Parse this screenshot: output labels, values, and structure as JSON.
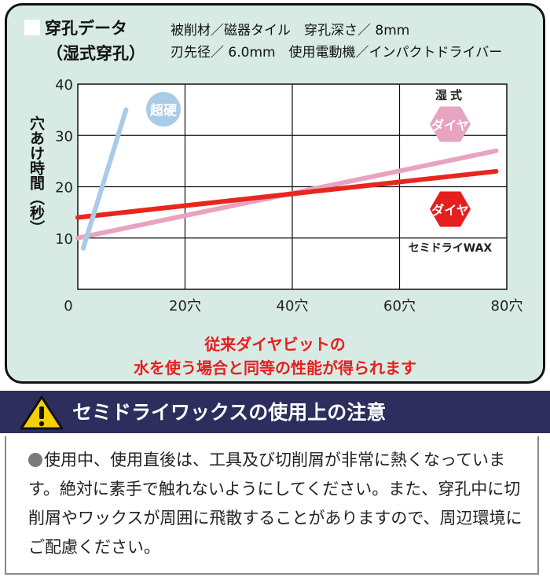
{
  "header": {
    "title_line1": "穿孔データ",
    "title_line2": "（湿式穿孔）",
    "condition_line1": "被削材／磁器タイル　穿孔深さ／ 8mm",
    "condition_line2": "刃先径／ 6.0mm　使用電動機／インパクトドライバー"
  },
  "chart_data": {
    "type": "line",
    "ylabel": "穴あけ時間（秒）",
    "x_ticks": [
      "0",
      "20穴",
      "40穴",
      "60穴",
      "80穴"
    ],
    "y_ticks": [
      "10",
      "20",
      "30",
      "40"
    ],
    "xlim": [
      0,
      80
    ],
    "ylim": [
      0,
      40
    ],
    "grid": true,
    "series": [
      {
        "name": "超硬",
        "color": "#a9cbe8",
        "x": [
          1,
          9
        ],
        "y": [
          8,
          35
        ]
      },
      {
        "name": "湿式ダイヤ",
        "color": "#e8a3c1",
        "x": [
          0,
          78
        ],
        "y": [
          10,
          27
        ]
      },
      {
        "name": "セミドライWAX",
        "color": "#e8261e",
        "x": [
          0,
          78
        ],
        "y": [
          14,
          23
        ]
      }
    ],
    "labels": {
      "carbide": "超硬",
      "wet": "湿式",
      "dia_wet": "ダイヤ",
      "dia_semi": "ダイヤ",
      "semi_wax": "セミドライWAX"
    }
  },
  "note": {
    "line1": "従来ダイヤビットの",
    "line2": "水を使う場合と同等の性能が得られます"
  },
  "caution": {
    "title": "セミドライワックスの使用上の注意",
    "body": "使用中、使用直後は、工具及び切削屑が非常に熱くなっています。絶対に素手で触れないようにしてください。また、穿孔中に切削屑やワックスが周囲に飛散することがありますので、周辺環境にご配慮ください。"
  },
  "colors": {
    "panel_bg": "#d7ebe4",
    "accent_red": "#e61e1e",
    "navy": "#2d2e5e",
    "warning_yellow": "#f5d000"
  }
}
